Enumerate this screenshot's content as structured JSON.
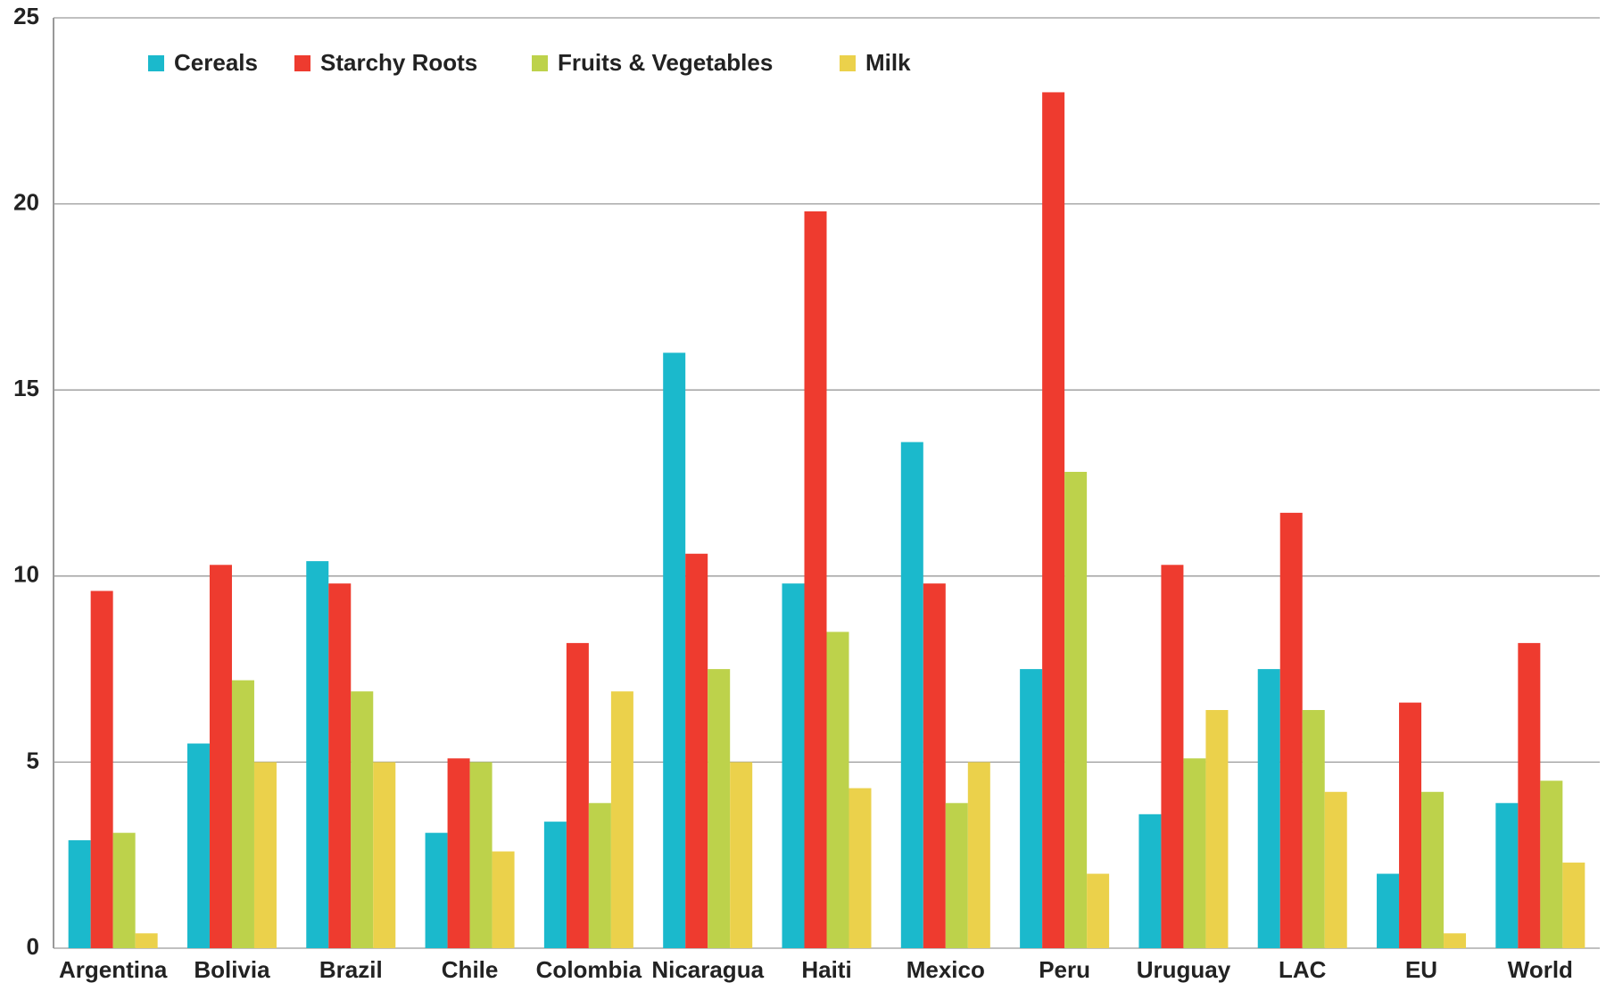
{
  "chart_data": {
    "type": "bar",
    "categories": [
      "Argentina",
      "Bolivia",
      "Brazil",
      "Chile",
      "Colombia",
      "Nicaragua",
      "Haiti",
      "Mexico",
      "Peru",
      "Uruguay",
      "LAC",
      "EU",
      "World"
    ],
    "series": [
      {
        "name": "Cereals",
        "color": "#1bb9cc",
        "values": [
          2.9,
          5.5,
          10.4,
          3.1,
          3.4,
          16.0,
          9.8,
          13.6,
          7.5,
          3.6,
          7.5,
          2.0,
          3.9
        ]
      },
      {
        "name": "Starchy Roots",
        "color": "#ee3b2f",
        "values": [
          9.6,
          10.3,
          9.8,
          5.1,
          8.2,
          10.6,
          19.8,
          9.8,
          23.0,
          10.3,
          11.7,
          6.6,
          8.2
        ]
      },
      {
        "name": "Fruits & Vegetables",
        "color": "#bdd24b",
        "values": [
          3.1,
          7.2,
          6.9,
          5.0,
          3.9,
          7.5,
          8.5,
          3.9,
          12.8,
          5.1,
          6.4,
          4.2,
          4.5
        ]
      },
      {
        "name": "Milk",
        "color": "#ebd14b",
        "values": [
          0.4,
          5.0,
          5.0,
          2.6,
          6.9,
          5.0,
          4.3,
          5.0,
          2.0,
          6.4,
          4.2,
          0.4,
          2.3
        ]
      }
    ],
    "ylim": [
      0,
      25
    ],
    "yticks": [
      0,
      5,
      10,
      15,
      20,
      25
    ],
    "grid": true,
    "legend": "top-left"
  }
}
